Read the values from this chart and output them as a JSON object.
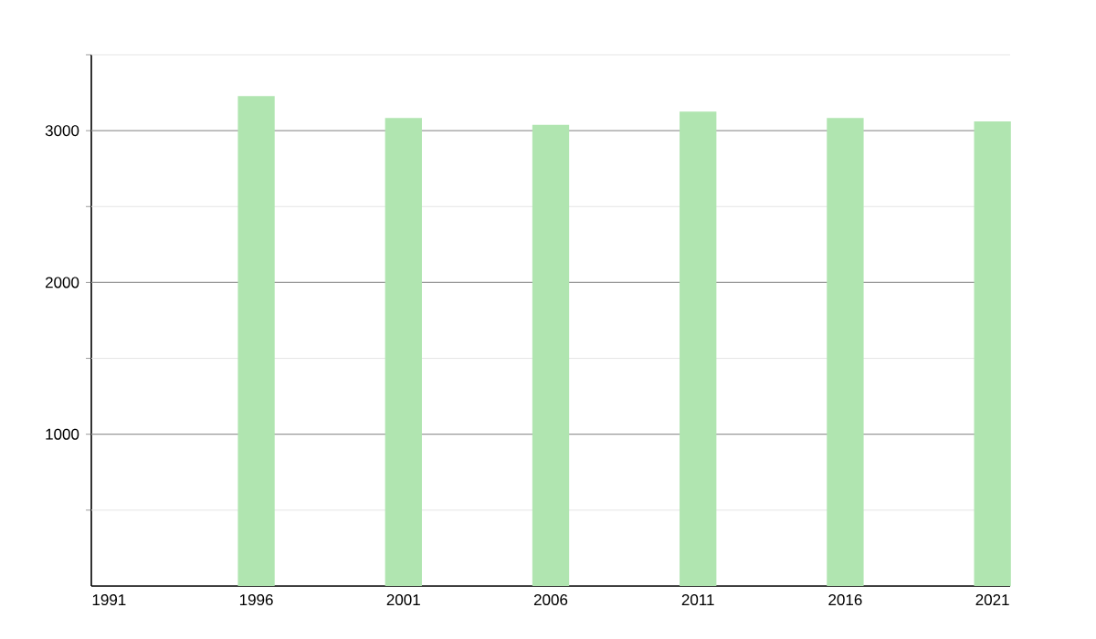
{
  "chart_data": {
    "type": "bar",
    "x": [
      1996,
      2001,
      2006,
      2011,
      2016,
      2021
    ],
    "values": [
      3228,
      3084,
      3038,
      3126,
      3084,
      3061
    ],
    "color": "#b0e5b0",
    "xlim": [
      1990.4,
      2021.6
    ],
    "xticks": [
      1991,
      1996,
      2001,
      2006,
      2011,
      2016,
      2021
    ],
    "ylim": [
      0,
      3500
    ],
    "yticks": [
      {
        "value": 500,
        "label": null
      },
      1000,
      {
        "value": 1500,
        "label": null
      },
      2000,
      {
        "value": 2500,
        "label": null
      },
      3000,
      {
        "value": 3500,
        "label": null
      }
    ],
    "grid": "y"
  }
}
